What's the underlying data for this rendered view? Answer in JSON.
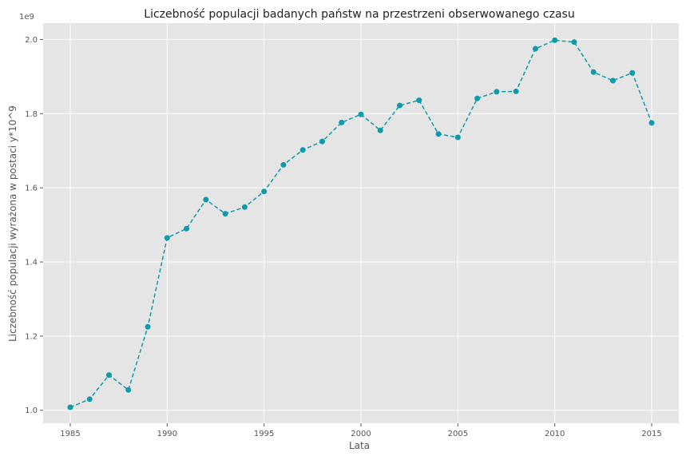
{
  "chart_data": {
    "type": "line",
    "title": "Liczebność populacji badanych państw na przestrzeni obserwowanego czasu",
    "xlabel": "Lata",
    "ylabel": "Liczebność populacji wyrażona w postaci y*10^9",
    "y_offset_label": "1e9",
    "xlim": [
      1983.6,
      2016.4
    ],
    "ylim": [
      0.965,
      2.044
    ],
    "x_ticks": [
      1985,
      1990,
      1995,
      2000,
      2005,
      2010,
      2015
    ],
    "x_tick_labels": [
      "1985",
      "1990",
      "1995",
      "2000",
      "2005",
      "2010",
      "2015"
    ],
    "y_ticks": [
      1.0,
      1.2,
      1.4,
      1.6,
      1.8,
      2.0
    ],
    "y_tick_labels": [
      "1.0",
      "1.2",
      "1.4",
      "1.6",
      "1.8",
      "2.0"
    ],
    "grid": true,
    "line_style": "dashed",
    "marker": "circle",
    "series": [
      {
        "color": "#0e9aaa",
        "x": [
          1985,
          1986,
          1987,
          1988,
          1989,
          1990,
          1991,
          1992,
          1993,
          1994,
          1995,
          1996,
          1997,
          1998,
          1999,
          2000,
          2001,
          2002,
          2003,
          2004,
          2005,
          2006,
          2007,
          2008,
          2009,
          2010,
          2011,
          2012,
          2013,
          2014,
          2015
        ],
        "values": [
          1.008,
          1.03,
          1.095,
          1.055,
          1.225,
          1.465,
          1.49,
          1.568,
          1.53,
          1.548,
          1.59,
          1.662,
          1.702,
          1.725,
          1.776,
          1.798,
          1.755,
          1.822,
          1.836,
          1.745,
          1.736,
          1.841,
          1.859,
          1.86,
          1.975,
          1.998,
          1.993,
          1.912,
          1.889,
          1.91,
          1.775
        ]
      }
    ]
  }
}
